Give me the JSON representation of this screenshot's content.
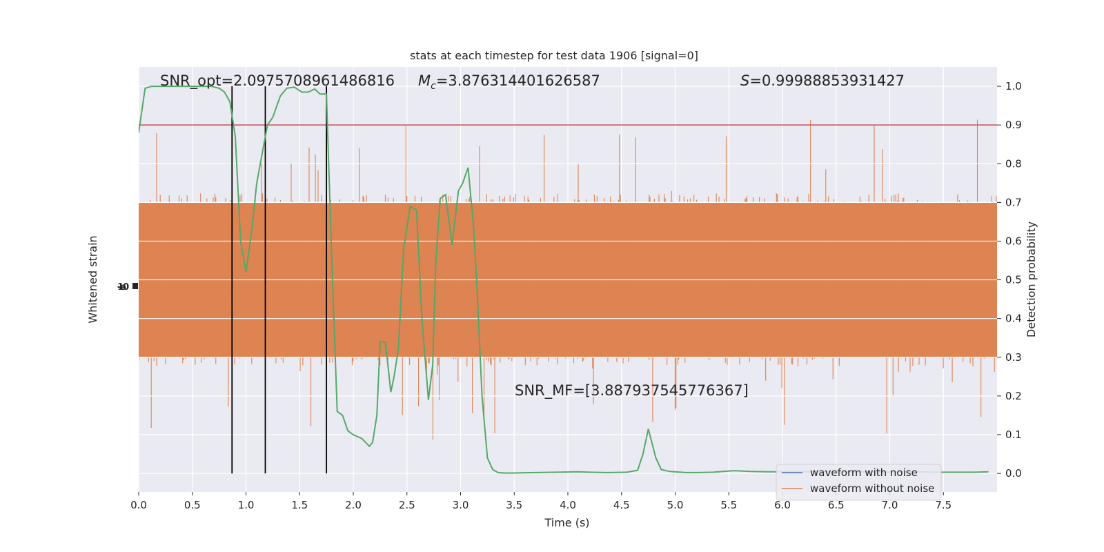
{
  "chart_data": {
    "type": "line",
    "title": "stats at each timestep for test data 1906 [signal=0]",
    "xlabel": "Time (s)",
    "ylabel_left": "Whitened strain",
    "ylabel_right": "Detection probability",
    "xlim": [
      0,
      8
    ],
    "ylim_right": [
      -0.048,
      1.05
    ],
    "x_ticks": [
      "0.0",
      "0.5",
      "1.0",
      "1.5",
      "2.0",
      "2.5",
      "3.0",
      "3.5",
      "4.0",
      "4.5",
      "5.0",
      "5.5",
      "6.0",
      "6.5",
      "7.0",
      "7.5"
    ],
    "y_ticks_right": [
      "0.0",
      "0.1",
      "0.2",
      "0.3",
      "0.4",
      "0.5",
      "0.6",
      "0.7",
      "0.8",
      "0.9",
      "1.0"
    ],
    "left_tick_label_overlapping": "-1e0",
    "annotations": {
      "snr_opt": "SNR_opt=2.0975708961486816",
      "mc_symbol": "M",
      "mc_sub": "c",
      "mc_value": "=3.876314401626587",
      "s_symbol": "S",
      "s_value": "=0.99988853931427",
      "snr_mf": "SNR_MF=[3.8879375457763​67]"
    },
    "threshold": 0.9,
    "vertical_lines_x": [
      0.87,
      1.18,
      1.75
    ],
    "legend": {
      "placement": "lower-right",
      "entries": [
        "waveform with noise",
        "waveform without noise"
      ]
    },
    "series": [
      {
        "name": "waveform without noise",
        "kind": "noise-band",
        "center": 0.5,
        "core_halfwidth": 0.09,
        "band_halfwidth": 0.2,
        "spike_max_halfwidth": 0.42
      },
      {
        "name": "detection probability",
        "x": [
          0.0,
          0.06,
          0.12,
          0.2,
          0.3,
          0.4,
          0.5,
          0.6,
          0.68,
          0.75,
          0.8,
          0.85,
          0.9,
          0.95,
          1.0,
          1.05,
          1.1,
          1.2,
          1.25,
          1.32,
          1.38,
          1.45,
          1.52,
          1.58,
          1.64,
          1.69,
          1.75,
          1.8,
          1.85,
          1.9,
          1.95,
          2.0,
          2.08,
          2.15,
          2.18,
          2.22,
          2.25,
          2.3,
          2.35,
          2.38,
          2.42,
          2.47,
          2.53,
          2.59,
          2.64,
          2.7,
          2.74,
          2.77,
          2.81,
          2.86,
          2.92,
          2.98,
          3.02,
          3.07,
          3.12,
          3.15,
          3.2,
          3.25,
          3.3,
          3.35,
          3.4,
          3.45,
          3.5,
          3.7,
          3.9,
          4.1,
          4.2,
          4.35,
          4.55,
          4.65,
          4.7,
          4.75,
          4.82,
          4.87,
          4.95,
          5.1,
          5.2,
          5.35,
          5.45,
          5.55,
          5.7,
          5.85,
          6.0,
          6.2,
          6.4,
          6.6,
          6.8,
          7.0,
          7.2,
          7.4,
          7.6,
          7.8,
          7.92
        ],
        "values": [
          0.88,
          0.995,
          1.0,
          1.0,
          1.0,
          1.0,
          1.0,
          1.0,
          1.0,
          0.995,
          0.985,
          0.96,
          0.87,
          0.6,
          0.52,
          0.62,
          0.75,
          0.9,
          0.92,
          0.975,
          0.995,
          0.998,
          0.985,
          0.985,
          0.993,
          0.98,
          0.98,
          0.55,
          0.16,
          0.15,
          0.11,
          0.1,
          0.09,
          0.07,
          0.08,
          0.15,
          0.34,
          0.34,
          0.21,
          0.25,
          0.32,
          0.58,
          0.69,
          0.68,
          0.4,
          0.19,
          0.28,
          0.55,
          0.71,
          0.72,
          0.59,
          0.73,
          0.75,
          0.79,
          0.64,
          0.5,
          0.2,
          0.04,
          0.01,
          0.002,
          0.001,
          0.001,
          0.001,
          0.002,
          0.003,
          0.004,
          0.003,
          0.002,
          0.003,
          0.008,
          0.05,
          0.115,
          0.04,
          0.01,
          0.005,
          0.002,
          0.002,
          0.003,
          0.005,
          0.007,
          0.005,
          0.004,
          0.004,
          0.004,
          0.005,
          0.003,
          0.004,
          0.003,
          0.005,
          0.003,
          0.003,
          0.003,
          0.004
        ]
      }
    ],
    "colors": {
      "background": "#eaeaf2",
      "grid": "#ffffff",
      "noise": "#dd8452",
      "probability": "#55a868",
      "threshold": "#c44e52",
      "vlines": "#000000",
      "legend_line_noise": "#4c72b0"
    }
  }
}
